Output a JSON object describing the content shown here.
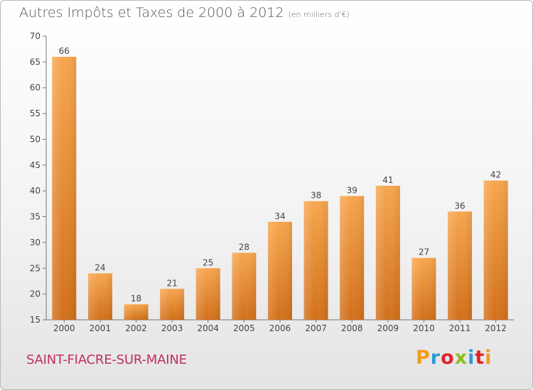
{
  "header": {
    "title": "Autres Impôts et Taxes de 2000 à 2012",
    "unit": "(en milliers d'€)"
  },
  "footer": {
    "commune": "SAINT-FIACRE-SUR-MAINE",
    "logo": "Proxiti"
  },
  "chart_data": {
    "type": "bar",
    "title": "Autres Impôts et Taxes de 2000 à 2012",
    "subtitle": "(en milliers d'€)",
    "xlabel": "",
    "ylabel": "",
    "categories": [
      "2000",
      "2001",
      "2002",
      "2003",
      "2004",
      "2005",
      "2006",
      "2007",
      "2008",
      "2009",
      "2010",
      "2011",
      "2012"
    ],
    "values": [
      66,
      24,
      18,
      21,
      25,
      28,
      34,
      38,
      39,
      41,
      27,
      36,
      42
    ],
    "ylim": [
      15,
      70
    ],
    "yticks": [
      15,
      20,
      25,
      30,
      35,
      40,
      45,
      50,
      55,
      60,
      65,
      70
    ],
    "grid": false,
    "legend": "none",
    "colors": {
      "bar_top": "#f7a64e",
      "bar_bottom": "#d2701b",
      "text": "#444444"
    }
  }
}
